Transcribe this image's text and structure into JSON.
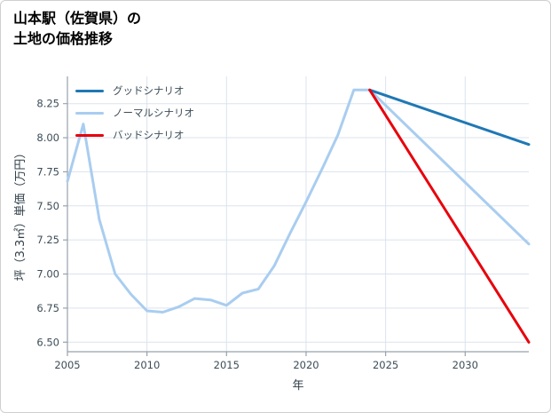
{
  "figure": {
    "title": "山本駅（佐賀県）の\n土地の価格推移"
  },
  "chart_data": {
    "type": "line",
    "title": "山本駅（佐賀県）の 土地の価格推移",
    "xlabel": "年",
    "ylabel": "坪（3.3㎡）単価（万円）",
    "xlim": [
      2005,
      2034
    ],
    "ylim": [
      6.43,
      8.45
    ],
    "xticks": [
      2005,
      2010,
      2015,
      2020,
      2025,
      2030
    ],
    "ytick_values": [
      6.5,
      6.75,
      7.0,
      7.25,
      7.5,
      7.75,
      8.0,
      8.25
    ],
    "ytick_labels": [
      "6.50",
      "6.75",
      "7.00",
      "7.25",
      "7.50",
      "7.75",
      "8.00",
      "8.25"
    ],
    "grid": true,
    "legend_position": "upper-left",
    "colors": {
      "grid": "#dbe3ee",
      "spine": "#97a2ac",
      "tick_text": "#3c4c57",
      "axis_label_text": "#2e3d47"
    },
    "draw_order": [
      1,
      0,
      2
    ],
    "series": [
      {
        "id": "good-scenario",
        "name": "グッドシナリオ",
        "color": "#1f78b4",
        "x": [
          2024,
          2034
        ],
        "y": [
          8.35,
          7.95
        ]
      },
      {
        "id": "normal-scenario",
        "name": "ノーマルシナリオ",
        "color": "#a9cdf0",
        "x": [
          2005,
          2006,
          2007,
          2008,
          2009,
          2010,
          2011,
          2012,
          2013,
          2014,
          2015,
          2016,
          2017,
          2018,
          2019,
          2020,
          2021,
          2022,
          2023,
          2024,
          2034
        ],
        "y": [
          7.68,
          8.1,
          7.4,
          7.0,
          6.85,
          6.73,
          6.72,
          6.76,
          6.82,
          6.81,
          6.77,
          6.86,
          6.89,
          7.06,
          7.3,
          7.53,
          7.77,
          8.02,
          8.35,
          8.35,
          7.22
        ]
      },
      {
        "id": "bad-scenario",
        "name": "バッドシナリオ",
        "color": "#e8000b",
        "x": [
          2024,
          2034
        ],
        "y": [
          8.35,
          6.5
        ]
      }
    ]
  }
}
